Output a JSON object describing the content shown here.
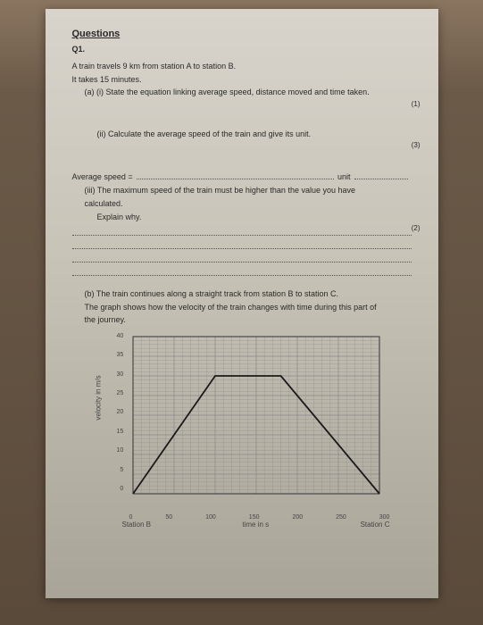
{
  "heading": "Questions",
  "qnum": "Q1.",
  "intro1": "A train travels 9 km from station A to station B.",
  "intro2": "It takes 15 minutes.",
  "a_i": "(a) (i) State the equation linking average speed, distance moved and time taken.",
  "mark1": "(1)",
  "a_ii": "(ii) Calculate the average speed of the train and give its unit.",
  "mark3": "(3)",
  "avg_label": "Average speed =",
  "unit_label": "unit",
  "a_iii_1": "(iii) The maximum speed of the train must be higher than the value you have",
  "a_iii_2": "calculated.",
  "a_iii_3": "Explain why.",
  "mark2": "(2)",
  "b_1": "(b) The train continues along a straight track from station B to station C.",
  "b_2": "The graph shows how the velocity of the train changes with time during this part of",
  "b_3": "the journey.",
  "chart": {
    "ylabel": "velocity in m/s",
    "xlabel": "time in s",
    "station_b": "Station B",
    "station_c": "Station C",
    "xticks": [
      "0",
      "50",
      "100",
      "150",
      "200",
      "250",
      "300"
    ],
    "yticks": [
      "40",
      "35",
      "30",
      "25",
      "20",
      "15",
      "10",
      "5",
      "0"
    ],
    "xlim": [
      0,
      300
    ],
    "ylim": [
      0,
      40
    ],
    "grid_minor": 5,
    "grid_major": 25,
    "grid_color": "#888",
    "line_color": "#1a1a1a",
    "line_width": 1.8,
    "points": [
      [
        0,
        0
      ],
      [
        100,
        30
      ],
      [
        180,
        30
      ],
      [
        300,
        0
      ]
    ]
  }
}
